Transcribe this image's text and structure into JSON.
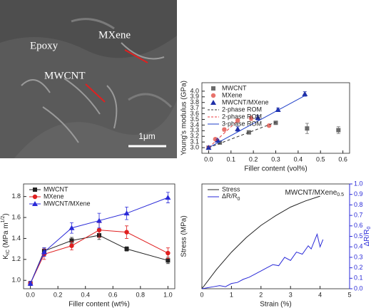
{
  "image": {
    "labels": [
      "Epoxy",
      "MXene",
      "MWCNT",
      "1μm"
    ]
  },
  "chart_data": [
    {
      "type": "scatter",
      "xlabel": "Filler content (vol%)",
      "ylabel": "Young's modulus (GPa)",
      "legend": "upper left",
      "xlim": [
        -0.03,
        0.63
      ],
      "xticks": [
        {
          "value": 0,
          "label": "0.0"
        },
        0.1,
        0.2,
        0.3,
        0.4,
        0.5,
        0.6
      ],
      "ylim": [
        2.9,
        4.15
      ],
      "yticks": [
        {
          "value": 3,
          "label": "3.0"
        },
        3.1,
        3.2,
        3.3,
        3.4,
        3.5,
        3.6,
        3.7,
        3.8,
        3.9,
        {
          "value": 4,
          "label": "4.0"
        }
      ],
      "series": [
        {
          "name": "MWCNT",
          "color": "#6b6b6b",
          "marker": "square",
          "x": [
            0,
            0.05,
            0.18,
            0.3,
            0.44,
            0.58
          ],
          "values": [
            3.0,
            3.09,
            3.27,
            3.44,
            3.34,
            3.31
          ],
          "errors": [
            0.02,
            0.02,
            0.02,
            0.02,
            0.09,
            0.06
          ]
        },
        {
          "name": "MXene",
          "color": "#e8736c",
          "marker": "circle",
          "x": [
            0,
            0.03,
            0.07,
            0.13,
            0.19,
            0.27
          ],
          "values": [
            3.0,
            3.15,
            3.32,
            3.48,
            3.52,
            3.39
          ],
          "errors": [
            0.02,
            0.02,
            0.03,
            0.03,
            0.04,
            0.02
          ]
        },
        {
          "name": "MWCNT/MXene",
          "color": "#1f2fa8",
          "marker": "triangle",
          "x": [
            0,
            0.04,
            0.13,
            0.22,
            0.31,
            0.43
          ],
          "values": [
            3.0,
            3.13,
            3.33,
            3.53,
            3.67,
            3.95
          ],
          "errors": [
            0.02,
            0.02,
            0.04,
            0.04,
            0.03,
            0.04
          ]
        },
        {
          "name": "2-phase ROM",
          "color": "#333333",
          "line": "dashed",
          "x": [
            0,
            0.3
          ],
          "values": [
            3.0,
            3.45
          ]
        },
        {
          "name": "2-phase ROM",
          "color": "#e8383c",
          "line": "dashed",
          "x": [
            0,
            0.13
          ],
          "values": [
            3.0,
            3.48
          ]
        },
        {
          "name": "3-phase ROM",
          "color": "#1f3fc8",
          "line": "solid",
          "x": [
            0,
            0.43
          ],
          "values": [
            3.0,
            3.92
          ]
        }
      ]
    },
    {
      "type": "line",
      "xlabel": "Filler content (wt%)",
      "ylabel": [
        "K",
        "IC",
        " (MPa m",
        "1/2",
        ")"
      ],
      "legend": "upper left",
      "xlim": [
        -0.05,
        1.05
      ],
      "xticks": [
        {
          "value": 0,
          "label": "0.0"
        },
        0.2,
        0.4,
        0.6,
        0.8,
        {
          "value": 1,
          "label": "1.0"
        }
      ],
      "ylim": [
        0.92,
        1.92
      ],
      "yticks": [
        {
          "value": 1,
          "label": "1.0"
        },
        1.2,
        1.4,
        1.6,
        1.8
      ],
      "series": [
        {
          "name": "MWCNT",
          "color": "#222222",
          "marker": "square",
          "line": "solid",
          "x": [
            0,
            0.1,
            0.3,
            0.5,
            0.7,
            1.0
          ],
          "values": [
            0.97,
            1.28,
            1.38,
            1.43,
            1.3,
            1.19
          ],
          "errors": [
            0.02,
            0.03,
            0.03,
            0.04,
            0.02,
            0.03
          ]
        },
        {
          "name": "MXene",
          "color": "#e02020",
          "marker": "circle",
          "line": "solid",
          "x": [
            0,
            0.1,
            0.3,
            0.5,
            0.7,
            1.0
          ],
          "values": [
            0.97,
            1.25,
            1.33,
            1.48,
            1.46,
            1.26
          ],
          "errors": [
            0.02,
            0.05,
            0.04,
            0.07,
            0.06,
            0.05
          ]
        },
        {
          "name": "MWCNT/MXene",
          "color": "#2a2ad8",
          "marker": "triangle",
          "line": "solid",
          "x": [
            0,
            0.1,
            0.3,
            0.5,
            0.7,
            1.0
          ],
          "values": [
            0.97,
            1.27,
            1.5,
            1.57,
            1.64,
            1.79
          ],
          "errors": [
            0.02,
            0.04,
            0.05,
            0.07,
            0.06,
            0.05
          ]
        }
      ]
    },
    {
      "type": "line",
      "title": [
        "MWCNT/MXene",
        "0.5"
      ],
      "xlabel": "Strain (%)",
      "ylabel": "Stress (MPa)",
      "y2label": [
        "ΔR/R",
        "0"
      ],
      "legend": "upper left",
      "xlim": [
        0,
        5
      ],
      "xticks": [
        0,
        1,
        2,
        3,
        4,
        5
      ],
      "ylim": [
        0,
        86
      ],
      "y2lim": [
        0,
        1
      ],
      "y2ticks": [
        {
          "value": 0,
          "label": "0.0"
        },
        0.1,
        0.2,
        0.3,
        0.4,
        0.5,
        0.6,
        0.7,
        0.8,
        0.9,
        {
          "value": 1,
          "label": "1.0"
        }
      ],
      "y2color": "#2a2ad8",
      "series": [
        {
          "name": "Stress",
          "color": "#222222",
          "line": "solid",
          "x": [
            0,
            0.5,
            1,
            1.5,
            2,
            2.5,
            3,
            3.5,
            4
          ],
          "values": [
            0,
            16,
            30,
            42,
            52,
            60,
            67,
            72,
            76
          ]
        },
        {
          "name": [
            "ΔR/R",
            "0"
          ],
          "color": "#2a2ad8",
          "line": "solid",
          "axis": "y2",
          "x": [
            0,
            0.2,
            0.4,
            0.6,
            0.8,
            1.0,
            1.2,
            1.4,
            1.6,
            1.8,
            2.0,
            2.2,
            2.4,
            2.6,
            2.8,
            3.0,
            3.2,
            3.4,
            3.6,
            3.7,
            3.8,
            3.9,
            4.0,
            4.1
          ],
          "values": [
            0,
            0.01,
            0.02,
            0.03,
            0.02,
            0.05,
            0.06,
            0.09,
            0.11,
            0.14,
            0.17,
            0.2,
            0.23,
            0.22,
            0.3,
            0.27,
            0.35,
            0.33,
            0.41,
            0.38,
            0.45,
            0.52,
            0.4,
            0.47
          ]
        }
      ]
    }
  ]
}
